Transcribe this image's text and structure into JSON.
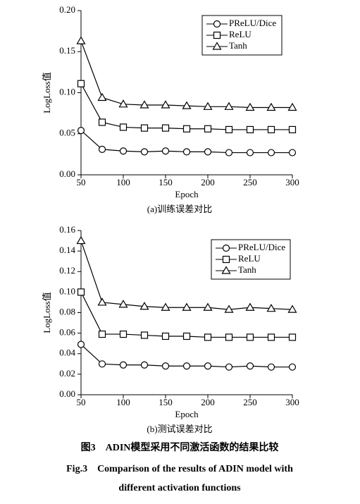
{
  "chart_data": [
    {
      "type": "line",
      "x_label": "Epoch",
      "y_label": "LogLoss值",
      "caption": "(a)训练误差对比",
      "x": [
        50,
        75,
        100,
        125,
        150,
        175,
        200,
        225,
        250,
        275,
        300
      ],
      "xlim": [
        50,
        300
      ],
      "xticks": [
        50,
        100,
        150,
        200,
        250,
        300
      ],
      "ylim": [
        0,
        0.2
      ],
      "yticks": [
        {
          "value": 0,
          "label": "0.00"
        },
        {
          "value": 0.05,
          "label": "0.05"
        },
        {
          "value": 0.1,
          "label": "0.10"
        },
        {
          "value": 0.15,
          "label": "0.15"
        },
        {
          "value": 0.2,
          "label": "0.20"
        }
      ],
      "grid": false,
      "legend": "upper right",
      "series": [
        {
          "name": "PReLU/Dice",
          "color": "#000000",
          "marker": "circle",
          "values": [
            0.054,
            0.031,
            0.029,
            0.028,
            0.029,
            0.028,
            0.028,
            0.027,
            0.027,
            0.027,
            0.027
          ]
        },
        {
          "name": "ReLU",
          "color": "#000000",
          "marker": "square",
          "values": [
            0.111,
            0.064,
            0.058,
            0.057,
            0.057,
            0.056,
            0.056,
            0.055,
            0.055,
            0.055,
            0.055
          ]
        },
        {
          "name": "Tanh",
          "color": "#000000",
          "marker": "triangle",
          "values": [
            0.163,
            0.094,
            0.086,
            0.085,
            0.085,
            0.084,
            0.083,
            0.083,
            0.082,
            0.082,
            0.082
          ]
        }
      ]
    },
    {
      "type": "line",
      "x_label": "Epoch",
      "y_label": "LogLoss值",
      "caption": "(b)测试误差对比",
      "x": [
        50,
        75,
        100,
        125,
        150,
        175,
        200,
        225,
        250,
        275,
        300
      ],
      "xlim": [
        50,
        300
      ],
      "xticks": [
        50,
        100,
        150,
        200,
        250,
        300
      ],
      "ylim": [
        0,
        0.16
      ],
      "yticks": [
        {
          "value": 0,
          "label": "0.00"
        },
        {
          "value": 0.02,
          "label": "0.02"
        },
        {
          "value": 0.04,
          "label": "0.04"
        },
        {
          "value": 0.06,
          "label": "0.06"
        },
        {
          "value": 0.08,
          "label": "0.08"
        },
        {
          "value": 0.1,
          "label": "0.10"
        },
        {
          "value": 0.12,
          "label": "0.12"
        },
        {
          "value": 0.14,
          "label": "0.14"
        },
        {
          "value": 0.16,
          "label": "0.16"
        }
      ],
      "grid": false,
      "legend": "upper right",
      "series": [
        {
          "name": "PReLU/Dice",
          "color": "#000000",
          "marker": "circle",
          "values": [
            0.049,
            0.03,
            0.029,
            0.029,
            0.028,
            0.028,
            0.028,
            0.027,
            0.028,
            0.027,
            0.027
          ]
        },
        {
          "name": "ReLU",
          "color": "#000000",
          "marker": "square",
          "values": [
            0.1,
            0.059,
            0.059,
            0.058,
            0.057,
            0.057,
            0.056,
            0.056,
            0.056,
            0.056,
            0.056
          ]
        },
        {
          "name": "Tanh",
          "color": "#000000",
          "marker": "triangle",
          "values": [
            0.15,
            0.09,
            0.088,
            0.086,
            0.085,
            0.085,
            0.085,
            0.083,
            0.085,
            0.084,
            0.083
          ]
        }
      ]
    }
  ],
  "figure_caption": {
    "cn": "图3　ADIN模型采用不同激活函数的结果比较",
    "en_line1": "Fig.3　Comparison of the results of ADIN model with",
    "en_line2": "different activation functions"
  }
}
